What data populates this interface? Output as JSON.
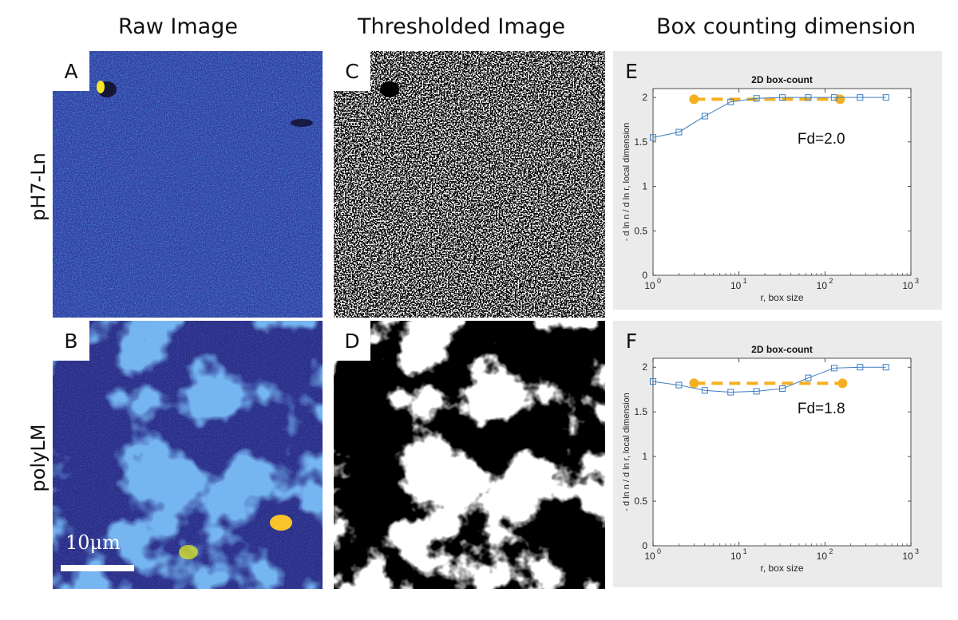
{
  "headers": {
    "raw": "Raw Image",
    "thresholded": "Thresholded Image",
    "box": "Box counting dimension"
  },
  "rows": {
    "top": "pH7-Ln",
    "bottom": "polyLM"
  },
  "panels": {
    "A": "A",
    "B": "B",
    "C": "C",
    "D": "D",
    "E": "E",
    "F": "F"
  },
  "scale_bar": "10μm",
  "colors": {
    "series": "#3c7ec1",
    "fit": "#f5b021",
    "plot_background": "#ebebeb",
    "raw_dark": "#2a2e8c",
    "raw_mid": "#2c6be0",
    "raw_bright": "#1bd0c8",
    "raw_hot": "#f7e62a"
  },
  "chart_data": [
    {
      "panel": "E",
      "type": "line",
      "title": "2D box-count",
      "xlabel": "r, box size",
      "ylabel": "- d ln n / d ln r, local dimension",
      "xscale": "log",
      "xlim": [
        1,
        1000
      ],
      "ylim": [
        0,
        2.1
      ],
      "xticks": [
        1,
        10,
        100,
        1000
      ],
      "xtick_labels": [
        "10",
        "10",
        "10",
        "10"
      ],
      "xtick_exponents": [
        "0",
        "1",
        "2",
        "3"
      ],
      "yticks": [
        0,
        0.5,
        1,
        1.5,
        2
      ],
      "ytick_labels": [
        "0",
        "0.5",
        "1",
        "1.5",
        "2"
      ],
      "series": [
        {
          "x": [
            1,
            2,
            4,
            8,
            16,
            32,
            64,
            128,
            256,
            512
          ],
          "y": [
            1.55,
            1.61,
            1.79,
            1.95,
            1.99,
            2.0,
            2.0,
            2.0,
            2.0,
            2.0
          ]
        }
      ],
      "fit_line": {
        "x": [
          3,
          150
        ],
        "y": 1.98
      },
      "annotation": "Fd=2.0"
    },
    {
      "panel": "F",
      "type": "line",
      "title": "2D box-count",
      "xlabel": "r, box size",
      "ylabel": "- d ln n / d ln r, local dimension",
      "xscale": "log",
      "xlim": [
        1,
        1000
      ],
      "ylim": [
        0,
        2.1
      ],
      "xticks": [
        1,
        10,
        100,
        1000
      ],
      "xtick_labels": [
        "10",
        "10",
        "10",
        "10"
      ],
      "xtick_exponents": [
        "0",
        "1",
        "2",
        "3"
      ],
      "yticks": [
        0,
        0.5,
        1,
        1.5,
        2
      ],
      "ytick_labels": [
        "0",
        "0.5",
        "1",
        "1.5",
        "2"
      ],
      "series": [
        {
          "x": [
            1,
            2,
            4,
            8,
            16,
            32,
            64,
            128,
            256,
            512
          ],
          "y": [
            1.84,
            1.8,
            1.74,
            1.72,
            1.73,
            1.76,
            1.88,
            1.99,
            2.0,
            2.0
          ]
        }
      ],
      "fit_line": {
        "x": [
          3,
          160
        ],
        "y": 1.82
      },
      "annotation": "Fd=1.8"
    }
  ]
}
